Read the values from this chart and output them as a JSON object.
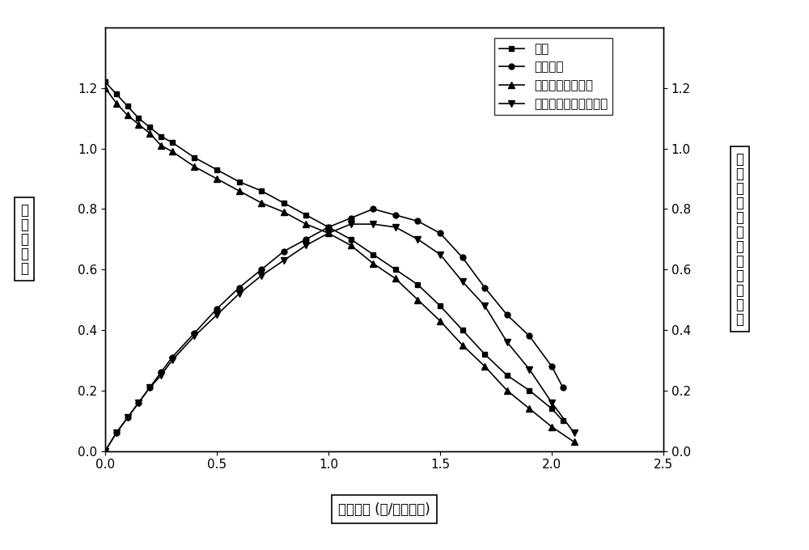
{
  "voltage_x": [
    0.0,
    0.05,
    0.1,
    0.15,
    0.2,
    0.25,
    0.3,
    0.4,
    0.5,
    0.6,
    0.7,
    0.8,
    0.9,
    1.0,
    1.1,
    1.2,
    1.3,
    1.4,
    1.5,
    1.6,
    1.7,
    1.8,
    1.9,
    2.0,
    2.05
  ],
  "voltage_y": [
    1.22,
    1.18,
    1.14,
    1.1,
    1.07,
    1.04,
    1.02,
    0.97,
    0.93,
    0.89,
    0.86,
    0.82,
    0.78,
    0.74,
    0.7,
    0.65,
    0.6,
    0.55,
    0.48,
    0.4,
    0.32,
    0.25,
    0.2,
    0.14,
    0.1
  ],
  "power_x": [
    0.0,
    0.05,
    0.1,
    0.15,
    0.2,
    0.25,
    0.3,
    0.4,
    0.5,
    0.6,
    0.7,
    0.8,
    0.9,
    1.0,
    1.1,
    1.2,
    1.3,
    1.4,
    1.5,
    1.6,
    1.7,
    1.8,
    1.9,
    2.0,
    2.05
  ],
  "power_y": [
    0.0,
    0.06,
    0.11,
    0.16,
    0.21,
    0.26,
    0.31,
    0.39,
    0.47,
    0.54,
    0.6,
    0.66,
    0.7,
    0.74,
    0.77,
    0.8,
    0.78,
    0.76,
    0.72,
    0.64,
    0.54,
    0.45,
    0.38,
    0.28,
    0.21
  ],
  "voltage_sw_x": [
    0.0,
    0.05,
    0.1,
    0.15,
    0.2,
    0.25,
    0.3,
    0.4,
    0.5,
    0.6,
    0.7,
    0.8,
    0.9,
    1.0,
    1.1,
    1.2,
    1.3,
    1.4,
    1.5,
    1.6,
    1.7,
    1.8,
    1.9,
    2.0,
    2.1
  ],
  "voltage_sw_y": [
    1.2,
    1.15,
    1.11,
    1.08,
    1.05,
    1.01,
    0.99,
    0.94,
    0.9,
    0.86,
    0.82,
    0.79,
    0.75,
    0.72,
    0.68,
    0.62,
    0.57,
    0.5,
    0.43,
    0.35,
    0.28,
    0.2,
    0.14,
    0.08,
    0.03
  ],
  "power_sw_x": [
    0.0,
    0.05,
    0.1,
    0.15,
    0.2,
    0.25,
    0.3,
    0.4,
    0.5,
    0.6,
    0.7,
    0.8,
    0.9,
    1.0,
    1.1,
    1.2,
    1.3,
    1.4,
    1.5,
    1.6,
    1.7,
    1.8,
    1.9,
    2.0,
    2.1
  ],
  "power_sw_y": [
    0.0,
    0.06,
    0.11,
    0.16,
    0.21,
    0.25,
    0.3,
    0.38,
    0.45,
    0.52,
    0.58,
    0.63,
    0.68,
    0.72,
    0.75,
    0.75,
    0.74,
    0.7,
    0.65,
    0.56,
    0.48,
    0.36,
    0.27,
    0.16,
    0.06
  ],
  "xlabel": "电流密度 (安/平方厘米)",
  "ylabel_left_chars": [
    "电",
    "压",
    "（",
    "伏",
    "）"
  ],
  "ylabel_right_chars": [
    "功",
    "率",
    "密",
    "度",
    "（",
    "瓦",
    "／",
    "平",
    "方",
    "厘",
    "米",
    "）"
  ],
  "legend_voltage": "电压",
  "legend_power": "功率密度",
  "legend_voltage_sw": "互换电极后的电压",
  "legend_power_sw": "互换电极后的功率密度",
  "xlim": [
    0.0,
    2.5
  ],
  "ylim_left": [
    0.0,
    1.4
  ],
  "ylim_right": [
    0.0,
    1.4
  ],
  "xticks": [
    0.0,
    0.5,
    1.0,
    1.5,
    2.0,
    2.5
  ],
  "yticks_left": [
    0.0,
    0.2,
    0.4,
    0.6,
    0.8,
    1.0,
    1.2
  ],
  "yticks_right": [
    0.0,
    0.2,
    0.4,
    0.6,
    0.8,
    1.0,
    1.2
  ],
  "line_color": "#000000",
  "background_color": "#ffffff",
  "font_size": 12,
  "legend_font_size": 11,
  "tick_font_size": 11
}
